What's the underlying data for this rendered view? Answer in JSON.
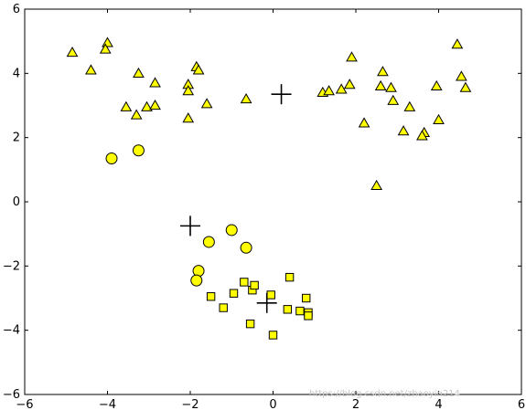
{
  "chart_data": {
    "type": "scatter",
    "title": "",
    "xlabel": "",
    "ylabel": "",
    "xlim": [
      -6,
      6
    ],
    "ylim": [
      -6,
      6
    ],
    "xticks": [
      -6,
      -4,
      -2,
      0,
      2,
      4,
      6
    ],
    "yticks": [
      -6,
      -4,
      -2,
      0,
      2,
      4,
      6
    ],
    "grid": false,
    "marker_fill": "#ffff00",
    "marker_edge": "#000000",
    "series": [
      {
        "marker": "circle",
        "points": [
          [
            -3.9,
            1.35
          ],
          [
            -3.25,
            1.6
          ],
          [
            -1.0,
            -0.88
          ],
          [
            -1.55,
            -1.25
          ],
          [
            -0.65,
            -1.43
          ],
          [
            -1.8,
            -2.15
          ],
          [
            -1.85,
            -2.45
          ]
        ]
      },
      {
        "marker": "triangle",
        "points": [
          [
            -4.85,
            4.65
          ],
          [
            -4.0,
            4.95
          ],
          [
            -4.05,
            4.75
          ],
          [
            -4.4,
            4.1
          ],
          [
            -3.25,
            4.0
          ],
          [
            -2.85,
            3.7
          ],
          [
            -3.55,
            2.95
          ],
          [
            -3.3,
            2.7
          ],
          [
            -3.05,
            2.95
          ],
          [
            -2.85,
            3.0
          ],
          [
            -1.85,
            4.2
          ],
          [
            -1.8,
            4.1
          ],
          [
            -2.05,
            3.65
          ],
          [
            -2.05,
            3.45
          ],
          [
            -2.05,
            2.6
          ],
          [
            -1.6,
            3.05
          ],
          [
            -0.65,
            3.2
          ],
          [
            1.2,
            3.4
          ],
          [
            1.35,
            3.45
          ],
          [
            1.65,
            3.5
          ],
          [
            1.85,
            3.65
          ],
          [
            1.9,
            4.5
          ],
          [
            2.65,
            4.05
          ],
          [
            2.6,
            3.6
          ],
          [
            2.85,
            3.55
          ],
          [
            2.9,
            3.15
          ],
          [
            3.15,
            2.2
          ],
          [
            3.3,
            2.95
          ],
          [
            2.2,
            2.45
          ],
          [
            2.5,
            0.5
          ],
          [
            3.65,
            2.15
          ],
          [
            3.6,
            2.05
          ],
          [
            3.95,
            3.6
          ],
          [
            4.0,
            2.55
          ],
          [
            4.45,
            4.9
          ],
          [
            4.55,
            3.9
          ],
          [
            4.65,
            3.55
          ]
        ]
      },
      {
        "marker": "square",
        "points": [
          [
            -1.5,
            -2.95
          ],
          [
            -1.2,
            -3.3
          ],
          [
            -0.95,
            -2.85
          ],
          [
            -0.7,
            -2.5
          ],
          [
            -0.5,
            -2.75
          ],
          [
            -0.45,
            -2.6
          ],
          [
            -0.55,
            -3.8
          ],
          [
            -0.05,
            -2.9
          ],
          [
            0.4,
            -2.35
          ],
          [
            0.35,
            -3.35
          ],
          [
            0.65,
            -3.4
          ],
          [
            0.8,
            -3.0
          ],
          [
            0.85,
            -3.45
          ],
          [
            0.85,
            -3.55
          ],
          [
            0.0,
            -4.15
          ]
        ]
      }
    ],
    "centers": [
      [
        0.2,
        3.35
      ],
      [
        -2.0,
        -0.75
      ],
      [
        -0.15,
        -3.15
      ]
    ]
  },
  "watermark": "https://blog.csdn.net/zhaoyin214"
}
